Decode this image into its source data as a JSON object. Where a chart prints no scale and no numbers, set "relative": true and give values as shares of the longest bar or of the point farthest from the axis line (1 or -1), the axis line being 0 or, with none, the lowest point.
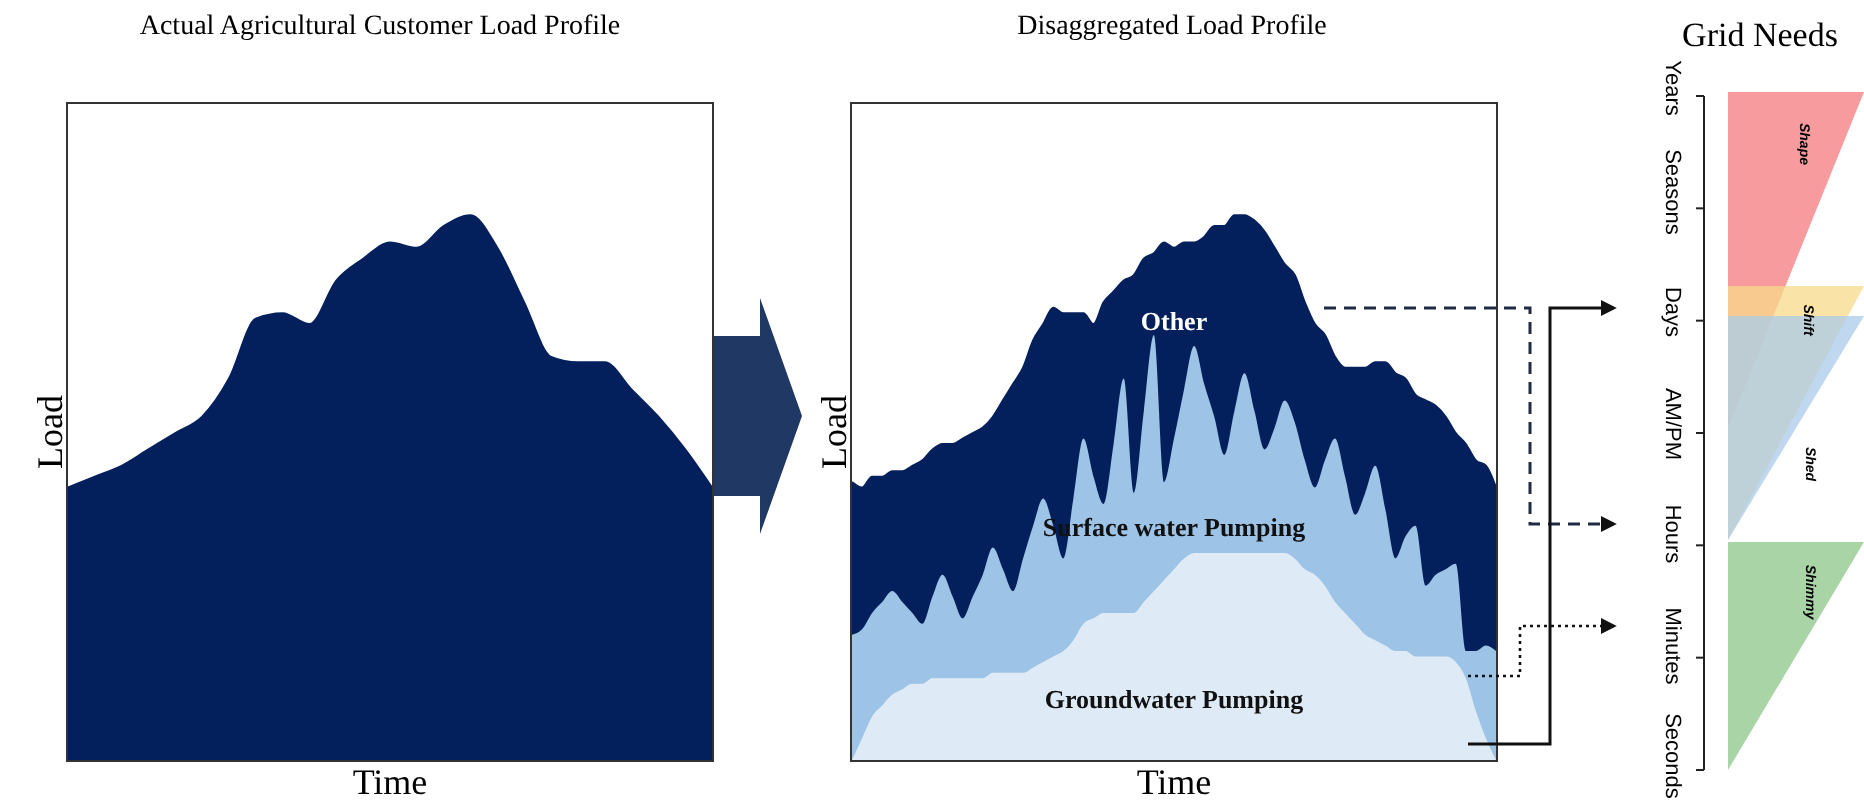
{
  "chart_data": [
    {
      "type": "area",
      "title": "Actual Agricultural Customer Load Profile",
      "xlabel": "Time",
      "ylabel": "Load",
      "relative": true,
      "tick_labels": false,
      "categories": [
        null,
        null,
        null,
        null,
        null,
        null,
        null,
        null,
        null,
        null,
        null,
        null,
        null,
        null,
        null,
        null,
        null,
        null,
        null,
        null,
        null,
        null,
        null,
        null,
        null
      ],
      "series": [
        {
          "color": "#03205c",
          "values": [
            0.5,
            0.52,
            0.54,
            0.57,
            0.6,
            0.63,
            0.7,
            0.81,
            0.82,
            0.8,
            0.88,
            0.92,
            0.95,
            0.94,
            0.98,
            1,
            0.94,
            0.84,
            0.74,
            0.73,
            0.73,
            0.68,
            0.63,
            0.57,
            0.5
          ]
        }
      ]
    },
    {
      "type": "area",
      "title": "Disaggregated Load Profile",
      "xlabel": "Time",
      "ylabel": "Load",
      "relative": true,
      "stacked": true,
      "tick_labels": false,
      "categories": [
        null,
        null,
        null,
        null,
        null,
        null,
        null,
        null,
        null,
        null,
        null,
        null,
        null,
        null,
        null,
        null,
        null,
        null,
        null,
        null,
        null,
        null,
        null,
        null,
        null,
        null,
        null,
        null,
        null,
        null,
        null,
        null,
        null,
        null,
        null,
        null,
        null,
        null,
        null,
        null,
        null,
        null,
        null,
        null,
        null,
        null,
        null,
        null,
        null,
        null,
        null,
        null,
        null,
        null,
        null,
        null,
        null,
        null,
        null,
        null,
        null,
        null,
        null,
        null,
        null
      ],
      "series": [
        {
          "name": "Groundwater Pumping",
          "color": "#deebf7",
          "values": [
            0,
            0.04,
            0.08,
            0.1,
            0.12,
            0.13,
            0.14,
            0.14,
            0.15,
            0.15,
            0.15,
            0.15,
            0.15,
            0.15,
            0.16,
            0.16,
            0.16,
            0.16,
            0.17,
            0.18,
            0.19,
            0.2,
            0.22,
            0.25,
            0.26,
            0.27,
            0.27,
            0.27,
            0.27,
            0.29,
            0.31,
            0.33,
            0.35,
            0.37,
            0.38,
            0.38,
            0.38,
            0.38,
            0.38,
            0.38,
            0.38,
            0.38,
            0.38,
            0.38,
            0.37,
            0.35,
            0.34,
            0.32,
            0.29,
            0.27,
            0.25,
            0.23,
            0.22,
            0.21,
            0.2,
            0.2,
            0.19,
            0.19,
            0.19,
            0.19,
            0.18,
            0.15,
            0.09,
            0.04,
            0
          ]
        },
        {
          "name": "Surface water Pumping",
          "color": "#9dc3e6",
          "values": [
            0.23,
            0.2,
            0.19,
            0.19,
            0.19,
            0.16,
            0.13,
            0.11,
            0.15,
            0.19,
            0.15,
            0.11,
            0.15,
            0.19,
            0.23,
            0.19,
            0.15,
            0.21,
            0.26,
            0.3,
            0.24,
            0.17,
            0.26,
            0.34,
            0.26,
            0.2,
            0.31,
            0.43,
            0.22,
            0.35,
            0.47,
            0.18,
            0.24,
            0.31,
            0.38,
            0.31,
            0.25,
            0.18,
            0.26,
            0.33,
            0.26,
            0.19,
            0.23,
            0.28,
            0.25,
            0.2,
            0.16,
            0.23,
            0.3,
            0.25,
            0.2,
            0.26,
            0.32,
            0.25,
            0.17,
            0.21,
            0.24,
            0.13,
            0.15,
            0.16,
            0.18,
            0.05,
            0.11,
            0.17,
            0.2
          ]
        },
        {
          "name": "Other",
          "color": "#03205c",
          "values": [
            0.28,
            0.26,
            0.25,
            0.23,
            0.22,
            0.24,
            0.27,
            0.3,
            0.27,
            0.24,
            0.28,
            0.33,
            0.3,
            0.27,
            0.24,
            0.31,
            0.38,
            0.35,
            0.34,
            0.32,
            0.4,
            0.45,
            0.34,
            0.23,
            0.28,
            0.37,
            0.28,
            0.18,
            0.4,
            0.28,
            0.15,
            0.44,
            0.35,
            0.27,
            0.19,
            0.27,
            0.35,
            0.42,
            0.36,
            0.29,
            0.35,
            0.4,
            0.33,
            0.25,
            0.27,
            0.29,
            0.3,
            0.23,
            0.15,
            0.2,
            0.27,
            0.23,
            0.19,
            0.27,
            0.34,
            0.29,
            0.24,
            0.34,
            0.31,
            0.28,
            0.24,
            0.38,
            0.35,
            0.33,
            0.3
          ]
        }
      ]
    },
    {
      "type": "other",
      "title": "Grid Needs",
      "annotations": [
        "Years",
        "Seasons",
        "Days",
        "AM/PM",
        "Hours",
        "Minutes",
        "Seconds",
        "Shape",
        "Shift",
        "Shed",
        "Shimmy"
      ]
    }
  ]
}
